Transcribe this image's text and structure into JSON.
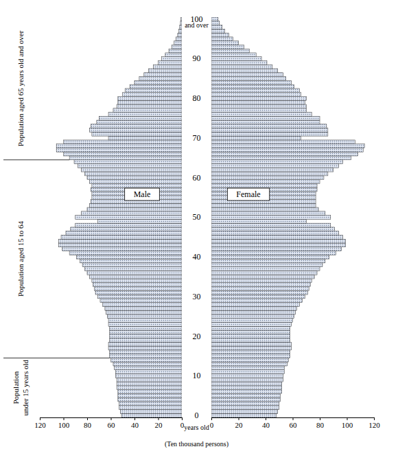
{
  "chart_data": {
    "type": "bar",
    "orientation": "horizontal",
    "categories": [
      "0",
      null,
      null,
      null,
      null,
      null,
      null,
      null,
      null,
      null,
      "10",
      null,
      null,
      null,
      null,
      null,
      null,
      null,
      null,
      null,
      "20",
      null,
      null,
      null,
      null,
      null,
      null,
      null,
      null,
      null,
      "30",
      null,
      null,
      null,
      null,
      null,
      null,
      null,
      null,
      null,
      "40",
      null,
      null,
      null,
      null,
      null,
      null,
      null,
      null,
      null,
      "50",
      null,
      null,
      null,
      null,
      null,
      null,
      null,
      null,
      null,
      "60",
      null,
      null,
      null,
      null,
      null,
      null,
      null,
      null,
      null,
      "70",
      null,
      null,
      null,
      null,
      null,
      null,
      null,
      null,
      null,
      "80",
      null,
      null,
      null,
      null,
      null,
      null,
      null,
      null,
      null,
      "90",
      null,
      null,
      null,
      null,
      null,
      null,
      null,
      null,
      null,
      "100"
    ],
    "series": [
      {
        "name": "Male",
        "color": "#dfe5f0",
        "values": [
          51,
          52,
          53,
          53,
          54,
          54,
          54,
          55,
          55,
          55,
          56,
          56,
          57,
          58,
          60,
          61,
          61,
          62,
          62,
          61,
          61,
          61,
          61,
          62,
          62,
          63,
          64,
          65,
          67,
          69,
          71,
          73,
          74,
          75,
          76,
          78,
          80,
          82,
          84,
          86,
          89,
          95,
          101,
          104,
          104,
          102,
          98,
          94,
          90,
          71,
          90,
          85,
          80,
          78,
          77,
          76,
          76,
          77,
          76,
          78,
          80,
          82,
          85,
          88,
          91,
          95,
          100,
          106,
          106,
          100,
          62,
          76,
          78,
          77,
          72,
          70,
          62,
          58,
          55,
          54,
          54,
          50,
          48,
          44,
          40,
          36,
          32,
          28,
          24,
          20,
          17,
          14,
          11,
          8.5,
          6.5,
          5,
          3.5,
          2.5,
          1.8,
          1.2,
          0.9
        ]
      },
      {
        "name": "Female",
        "color": "#dfe5f0",
        "values": [
          48,
          49,
          50,
          50,
          51,
          51,
          52,
          52,
          52,
          53,
          53,
          54,
          54,
          56,
          57,
          58,
          58,
          59,
          59,
          58,
          58,
          58,
          58,
          59,
          60,
          61,
          62,
          63,
          65,
          67,
          69,
          71,
          72,
          73,
          74,
          76,
          78,
          80,
          82,
          84,
          87,
          92,
          96,
          99,
          99,
          97,
          94,
          91,
          88,
          70,
          88,
          84,
          79,
          77,
          77,
          77,
          77,
          78,
          78,
          80,
          83,
          86,
          90,
          94,
          97,
          103,
          108,
          112,
          113,
          106,
          66,
          86,
          86,
          85,
          80,
          80,
          74,
          70,
          70,
          69,
          70,
          66,
          65,
          61,
          59,
          55,
          53,
          49,
          45,
          41,
          37,
          33,
          28,
          24,
          20,
          16,
          13,
          10,
          8,
          6,
          5
        ]
      }
    ],
    "xlim": [
      0,
      120
    ],
    "xticks": [
      0,
      20,
      40,
      60,
      80,
      100,
      120
    ],
    "xlabel": "(Ten thousand persons)",
    "annotations": [
      {
        "text": "years old",
        "at": 0
      },
      {
        "text": "and over",
        "at": 100
      }
    ],
    "age_groups": [
      {
        "text": "Population aged 65 years old and over",
        "from": 65,
        "to": 100
      },
      {
        "text": "Population aged 15 to 64",
        "from": 15,
        "to": 64
      },
      {
        "text": "Population under 15 years old",
        "from": 0,
        "to": 14
      }
    ]
  }
}
